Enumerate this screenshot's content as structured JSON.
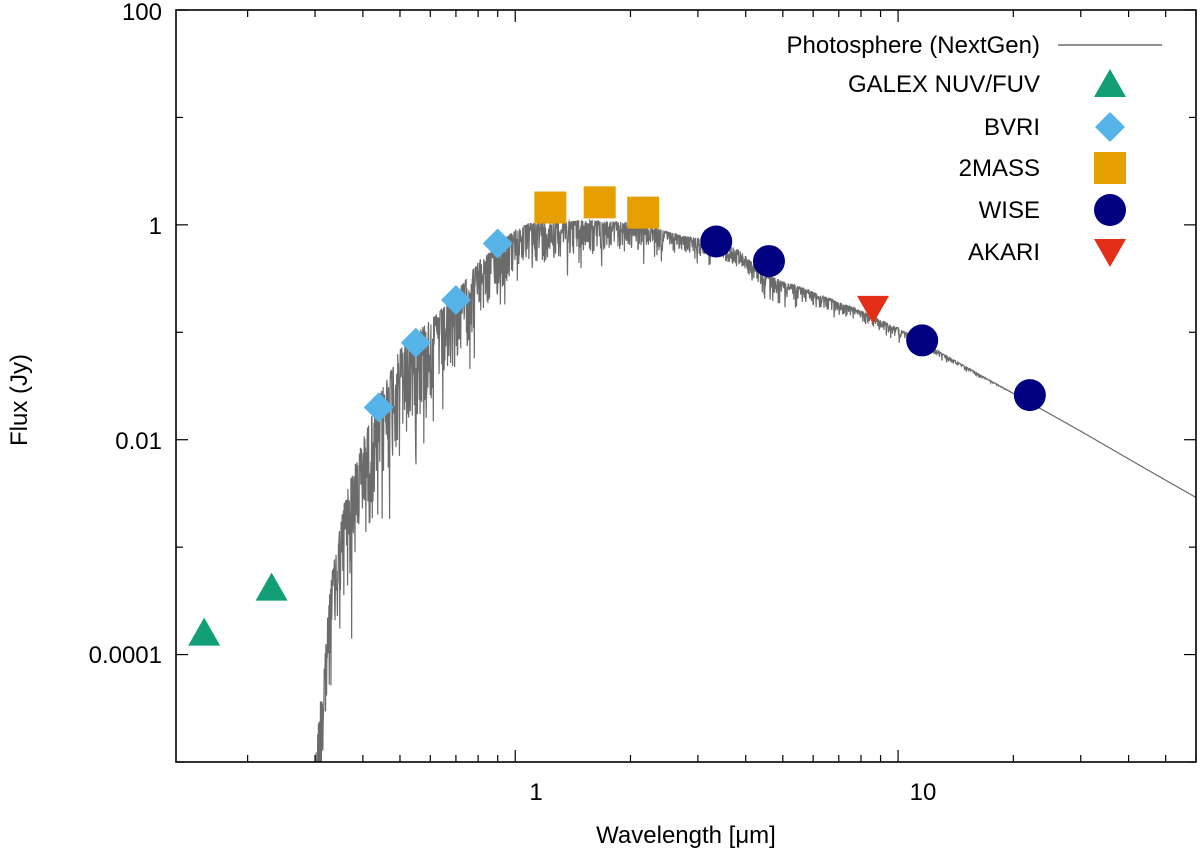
{
  "chart_data": {
    "type": "scatter",
    "xscale": "log",
    "yscale": "log",
    "xlabel": "Wavelength [μm]",
    "ylabel": "Flux (Jy)",
    "xlim": [
      0.13,
      60
    ],
    "ylim": [
      1e-05,
      100
    ],
    "x_tick_labels": [
      "1",
      "10"
    ],
    "y_tick_labels": [
      "100",
      "1",
      "0.01",
      "0.0001"
    ],
    "legend_position": "top-right",
    "series": [
      {
        "name": "Photosphere (NextGen)",
        "kind": "line",
        "color": "#6b6b6b",
        "points": [
          [
            0.3,
            1e-05
          ],
          [
            0.33,
            0.0005
          ],
          [
            0.36,
            0.003
          ],
          [
            0.4,
            0.01
          ],
          [
            0.45,
            0.03
          ],
          [
            0.5,
            0.07
          ],
          [
            0.55,
            0.1
          ],
          [
            0.6,
            0.13
          ],
          [
            0.65,
            0.17
          ],
          [
            0.7,
            0.23
          ],
          [
            0.8,
            0.45
          ],
          [
            0.9,
            0.65
          ],
          [
            1.0,
            0.9
          ],
          [
            1.1,
            1.05
          ],
          [
            1.3,
            1.1
          ],
          [
            1.6,
            1.1
          ],
          [
            2.0,
            1.05
          ],
          [
            2.3,
            0.95
          ],
          [
            2.7,
            0.8
          ],
          [
            3.0,
            0.75
          ],
          [
            3.3,
            0.7
          ],
          [
            3.8,
            0.6
          ],
          [
            4.5,
            0.35
          ],
          [
            5.0,
            0.3
          ],
          [
            6.0,
            0.24
          ],
          [
            7.0,
            0.19
          ],
          [
            8.0,
            0.16
          ],
          [
            9.0,
            0.13
          ],
          [
            10.0,
            0.11
          ],
          [
            12.0,
            0.075
          ],
          [
            15.0,
            0.048
          ],
          [
            20.0,
            0.027
          ],
          [
            30.0,
            0.012
          ],
          [
            45.0,
            0.0052
          ],
          [
            60.0,
            0.0029
          ]
        ],
        "noise_band": [
          [
            0.3,
            1.0
          ],
          [
            0.4,
            1.0
          ],
          [
            0.5,
            0.9
          ],
          [
            0.7,
            0.7
          ],
          [
            1.0,
            0.4
          ],
          [
            2.0,
            0.25
          ],
          [
            3.0,
            0.15
          ],
          [
            5.0,
            0.15
          ],
          [
            9.0,
            0.1
          ],
          [
            15.0,
            0.03
          ],
          [
            20.0,
            0.0
          ]
        ]
      },
      {
        "name": "GALEX NUV/FUV",
        "kind": "marker",
        "marker": "triangle-up",
        "color": "#129e76",
        "x": [
          0.154,
          0.231
        ],
        "y": [
          0.00016,
          0.00042
        ]
      },
      {
        "name": "BVRI",
        "kind": "marker",
        "marker": "diamond",
        "color": "#56b4e9",
        "x": [
          0.44,
          0.55,
          0.7,
          0.9
        ],
        "y": [
          0.02,
          0.08,
          0.2,
          0.67
        ]
      },
      {
        "name": "2MASS",
        "kind": "marker",
        "marker": "square",
        "color": "#e69f00",
        "x": [
          1.235,
          1.662,
          2.159
        ],
        "y": [
          1.45,
          1.62,
          1.3
        ]
      },
      {
        "name": "WISE",
        "kind": "marker",
        "marker": "circle",
        "color": "#000080",
        "x": [
          3.35,
          4.6,
          11.56,
          22.09
        ],
        "y": [
          0.7,
          0.46,
          0.084,
          0.026
        ]
      },
      {
        "name": "AKARI",
        "kind": "marker",
        "marker": "triangle-down",
        "color": "#e32f17",
        "x": [
          8.6
        ],
        "y": [
          0.165
        ]
      }
    ]
  }
}
